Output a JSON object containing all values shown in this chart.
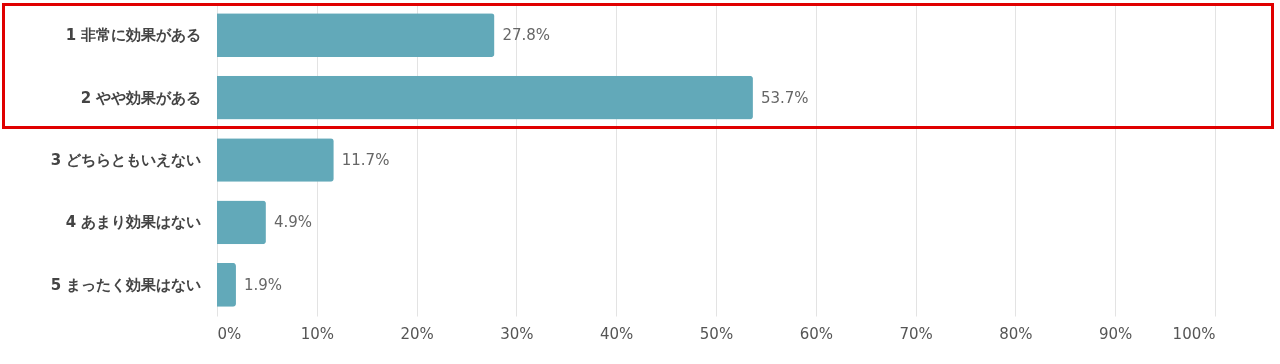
{
  "chart_data": {
    "type": "bar",
    "orientation": "horizontal",
    "categories": [
      "1 非常に効果がある",
      "2 やや効果がある",
      "3 どちらともいえない",
      "4 あまり効果はない",
      "5 まったく効果はない"
    ],
    "values": [
      27.8,
      53.7,
      11.7,
      4.9,
      1.9
    ],
    "value_labels": [
      "27.8%",
      "53.7%",
      "11.7%",
      "4.9%",
      "1.9%"
    ],
    "color": "#62a9b9",
    "xlim": [
      0,
      100
    ],
    "xticks": [
      {
        "value": 0,
        "label": "0%"
      },
      {
        "value": 10,
        "label": "10%"
      },
      {
        "value": 20,
        "label": "20%"
      },
      {
        "value": 30,
        "label": "30%"
      },
      {
        "value": 40,
        "label": "40%"
      },
      {
        "value": 50,
        "label": "50%"
      },
      {
        "value": 60,
        "label": "60%"
      },
      {
        "value": 70,
        "label": "70%"
      },
      {
        "value": 80,
        "label": "80%"
      },
      {
        "value": 90,
        "label": "90%"
      },
      {
        "value": 100,
        "label": "100%"
      }
    ],
    "grid": "x"
  }
}
